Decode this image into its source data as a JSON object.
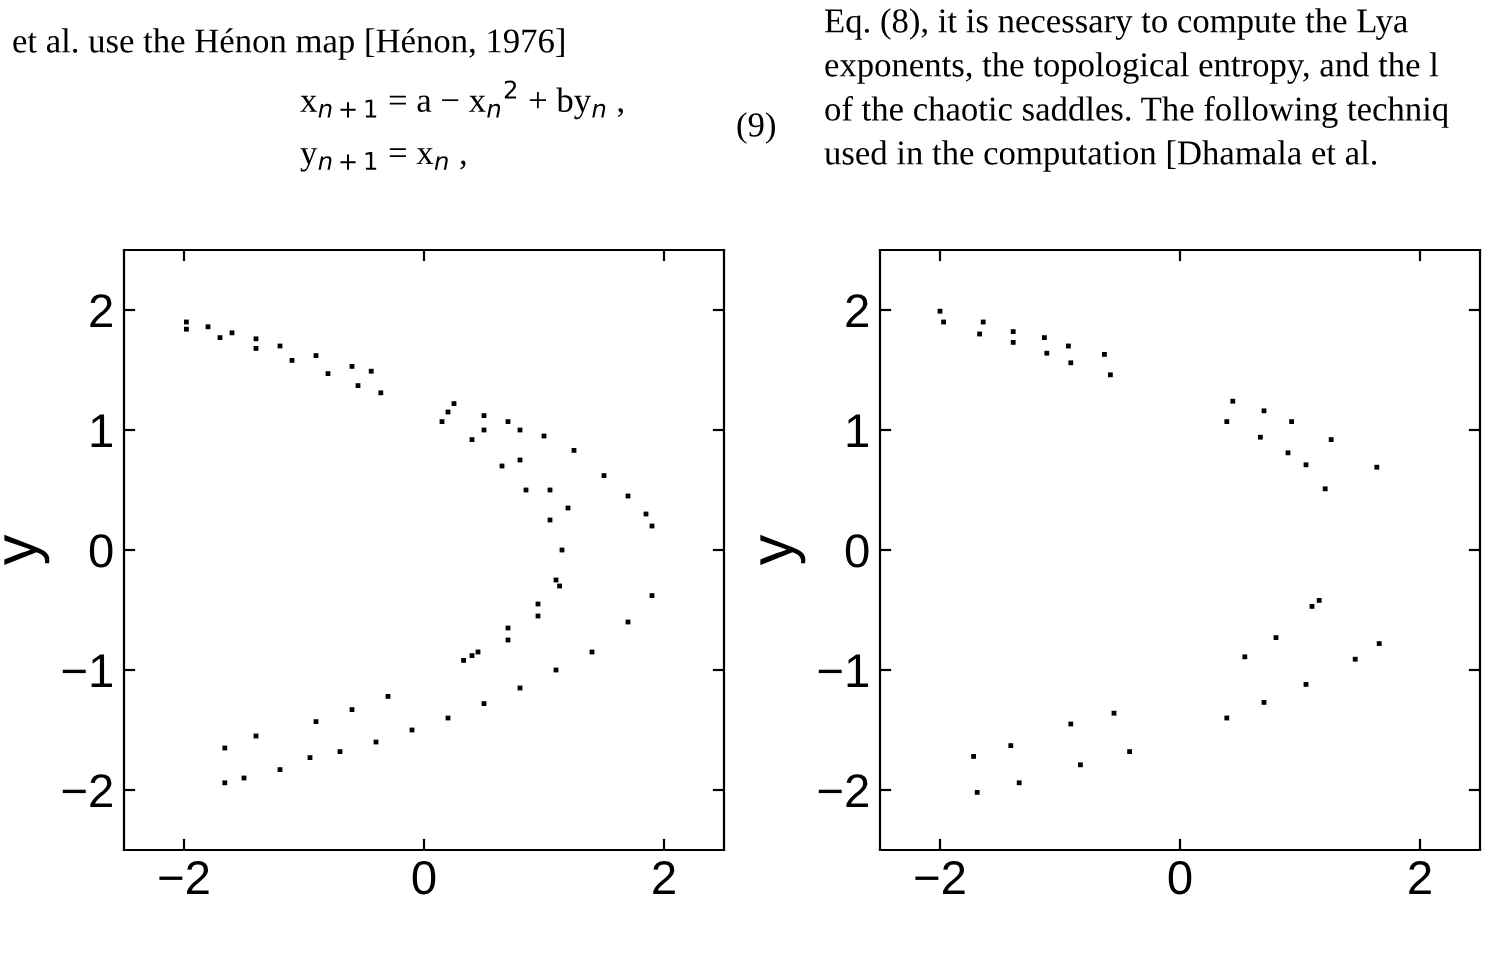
{
  "chart_data": [
    {
      "type": "scatter",
      "ylabel": "y",
      "xlim": [
        -2.5,
        2.5
      ],
      "ylim": [
        -2.5,
        2.5
      ],
      "xticks": [
        -2,
        0,
        2
      ],
      "yticks": [
        -2,
        -1,
        0,
        1,
        2
      ],
      "grid": false,
      "marker": "square",
      "annotations": [
        "et al. use the Hénon map [Hénon, 1976]",
        "x$_{n+1}$ = a − x$_{n}$$^{2}$ + by$_{n}$ ,",
        "y$_{n+1}$ = x$_{n}$ ,",
        "(9)",
        "Eq. (8), it is necessary to compute the Lya",
        "exponents, the topological entropy, and the l",
        "of the chaotic saddles. The following techniq",
        "used in the computation [Dhamala et al."
      ],
      "series": [
        {
          "color": "#000000",
          "x": [
            -1.98,
            -1.8,
            -1.6,
            -1.4,
            -1.2,
            -0.9,
            -0.6,
            -0.44,
            -1.98,
            -1.7,
            -1.4,
            -1.1,
            -0.8,
            -0.55,
            -0.36,
            0.15,
            0.4,
            0.65,
            0.85,
            1.05,
            1.15,
            1.1,
            0.95,
            0.7,
            0.45,
            0.33,
            0.2,
            0.5,
            0.8,
            1.05,
            1.2,
            1.13,
            0.95,
            0.7,
            0.4,
            0.25,
            0.5,
            0.7,
            0.8,
            1.0,
            1.25,
            1.5,
            1.7,
            1.85,
            1.9,
            1.9,
            1.7,
            1.4,
            1.1,
            0.8,
            0.5,
            0.2,
            -0.1,
            -0.4,
            -0.7,
            -0.95,
            -1.2,
            -1.5,
            -1.66,
            -1.66,
            -1.4,
            -0.9,
            -0.6,
            -0.3
          ],
          "values": [
            1.9,
            1.86,
            1.81,
            1.76,
            1.7,
            1.62,
            1.53,
            1.49,
            1.84,
            1.77,
            1.68,
            1.58,
            1.47,
            1.37,
            1.31,
            1.07,
            0.92,
            0.7,
            0.5,
            0.25,
            0.0,
            -0.25,
            -0.45,
            -0.65,
            -0.85,
            -0.92,
            1.15,
            1.0,
            0.75,
            0.5,
            0.35,
            -0.3,
            -0.55,
            -0.75,
            -0.88,
            1.22,
            1.12,
            1.07,
            1.0,
            0.95,
            0.83,
            0.62,
            0.45,
            0.3,
            0.2,
            -0.38,
            -0.6,
            -0.85,
            -1.0,
            -1.15,
            -1.28,
            -1.4,
            -1.5,
            -1.6,
            -1.68,
            -1.73,
            -1.83,
            -1.9,
            -1.94,
            -1.65,
            -1.55,
            -1.43,
            -1.33,
            -1.22
          ]
        }
      ]
    },
    {
      "type": "scatter",
      "ylabel": "y",
      "xlim": [
        -2.5,
        2.5
      ],
      "ylim": [
        -2.5,
        2.5
      ],
      "xticks": [
        -2,
        0,
        2
      ],
      "yticks": [
        -2,
        -1,
        0,
        1,
        2
      ],
      "grid": false,
      "marker": "square",
      "series": [
        {
          "color": "#000000",
          "x": [
            -2.0,
            -1.64,
            -1.39,
            -1.13,
            -0.93,
            -0.63,
            -1.97,
            -1.67,
            -1.39,
            -1.11,
            -0.91,
            -0.58,
            0.44,
            0.7,
            0.93,
            1.26,
            1.64,
            0.39,
            0.67,
            0.9,
            1.05,
            1.21,
            0.54,
            0.8,
            1.1,
            1.16,
            0.39,
            0.7,
            1.05,
            1.46,
            1.66,
            -1.72,
            -1.41,
            -0.91,
            -0.55,
            -1.69,
            -1.34,
            -0.83,
            -0.42
          ],
          "values": [
            1.99,
            1.9,
            1.82,
            1.77,
            1.7,
            1.63,
            1.9,
            1.8,
            1.73,
            1.64,
            1.56,
            1.46,
            1.24,
            1.16,
            1.07,
            0.92,
            0.69,
            1.07,
            0.94,
            0.81,
            0.71,
            0.51,
            -0.89,
            -0.73,
            -0.47,
            -0.42,
            -1.4,
            -1.27,
            -1.12,
            -0.91,
            -0.78,
            -1.72,
            -1.63,
            -1.45,
            -1.36,
            -2.02,
            -1.94,
            -1.79,
            -1.68
          ]
        }
      ]
    }
  ]
}
